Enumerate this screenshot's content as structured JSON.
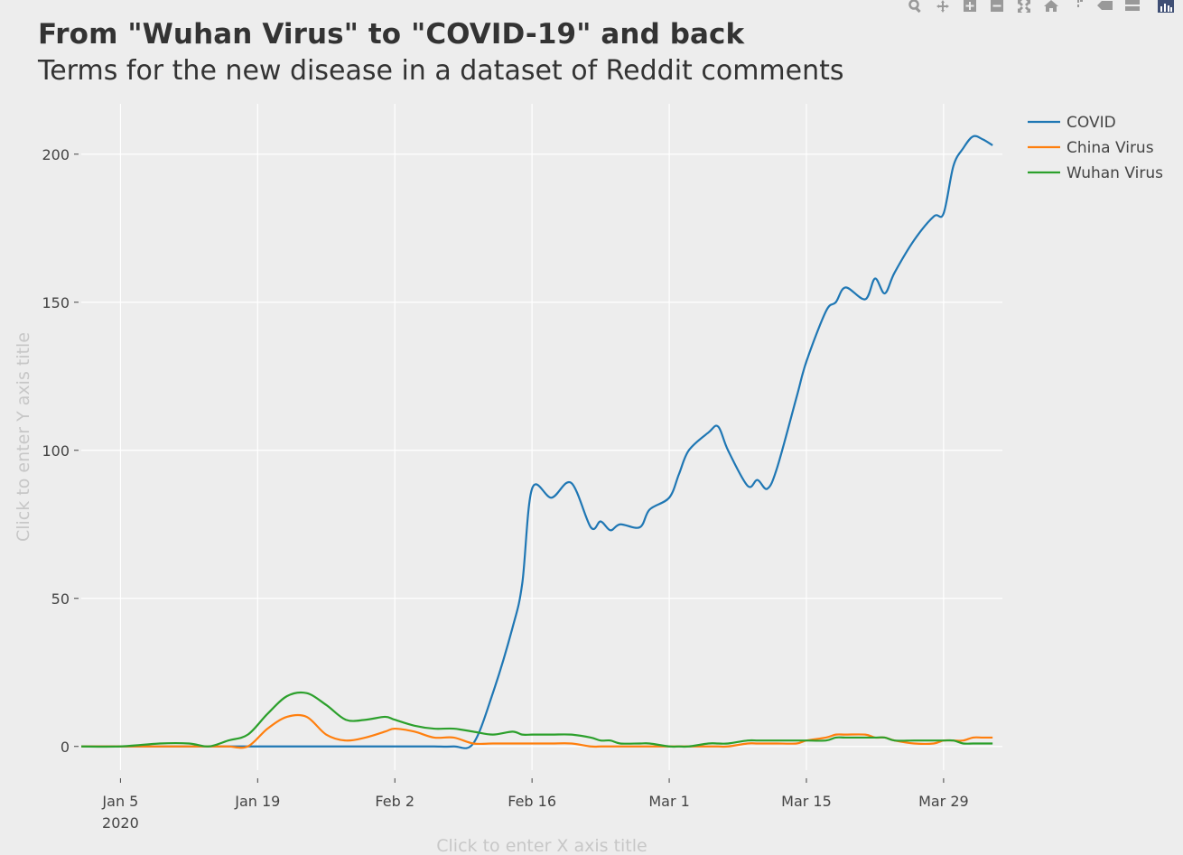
{
  "title": "From \"Wuhan Virus\" to \"COVID-19\" and back",
  "subtitle": "Terms for the new disease in a dataset of Reddit comments",
  "modebar": {
    "icons": [
      "zoom-icon",
      "pan-icon",
      "zoom-in-icon",
      "zoom-out-icon",
      "autoscale-icon",
      "reset-axes-icon",
      "spike-lines-icon",
      "hover-closest-icon",
      "hover-compare-icon",
      "plotly-logo-icon"
    ]
  },
  "colors": {
    "background": "#ededed",
    "grid": "#ffffff",
    "COVID": "#1f77b4",
    "China Virus": "#ff7f0e",
    "Wuhan Virus": "#2ca02c"
  },
  "chart_data": {
    "type": "line",
    "title": "From \"Wuhan Virus\" to \"COVID-19\" and back",
    "subtitle": "Terms for the new disease in a dataset of Reddit comments",
    "xlabel": "Click to enter X axis title",
    "ylabel": "Click to enter Y axis title",
    "x_tick_labels": [
      "Jan 5",
      "Jan 19",
      "Feb 2",
      "Feb 16",
      "Mar 1",
      "Mar 15",
      "Mar 29"
    ],
    "x_tick_dates": [
      "2020-01-05",
      "2020-01-19",
      "2020-02-02",
      "2020-02-16",
      "2020-03-01",
      "2020-03-15",
      "2020-03-29"
    ],
    "x_tick_year_label": "2020",
    "y_ticks": [
      0,
      50,
      100,
      150,
      200
    ],
    "xlim": [
      "2020-01-01",
      "2020-04-04"
    ],
    "ylim": [
      -8,
      217
    ],
    "grid": true,
    "legend_position": "top-right",
    "x": [
      "2020-01-01",
      "2020-01-05",
      "2020-01-09",
      "2020-01-12",
      "2020-01-14",
      "2020-01-16",
      "2020-01-18",
      "2020-01-20",
      "2020-01-22",
      "2020-01-24",
      "2020-01-26",
      "2020-01-28",
      "2020-01-30",
      "2020-02-01",
      "2020-02-02",
      "2020-02-04",
      "2020-02-06",
      "2020-02-08",
      "2020-02-10",
      "2020-02-12",
      "2020-02-14",
      "2020-02-15",
      "2020-02-16",
      "2020-02-18",
      "2020-02-20",
      "2020-02-22",
      "2020-02-23",
      "2020-02-24",
      "2020-02-25",
      "2020-02-27",
      "2020-02-28",
      "2020-03-01",
      "2020-03-02",
      "2020-03-03",
      "2020-03-05",
      "2020-03-06",
      "2020-03-07",
      "2020-03-09",
      "2020-03-10",
      "2020-03-11",
      "2020-03-12",
      "2020-03-14",
      "2020-03-15",
      "2020-03-17",
      "2020-03-18",
      "2020-03-19",
      "2020-03-21",
      "2020-03-22",
      "2020-03-23",
      "2020-03-24",
      "2020-03-26",
      "2020-03-28",
      "2020-03-29",
      "2020-03-30",
      "2020-03-31",
      "2020-04-01",
      "2020-04-02",
      "2020-04-03"
    ],
    "series": [
      {
        "name": "COVID",
        "values": [
          0,
          0,
          0,
          0,
          0,
          0,
          0,
          0,
          0,
          0,
          0,
          0,
          0,
          0,
          0,
          0,
          0,
          0,
          1,
          18,
          40,
          55,
          87,
          84,
          89,
          74,
          76,
          73,
          75,
          74,
          80,
          84,
          92,
          100,
          106,
          108,
          100,
          88,
          90,
          87,
          94,
          118,
          130,
          147,
          150,
          155,
          151,
          158,
          153,
          160,
          171,
          179,
          180,
          196,
          202,
          206,
          205,
          203
        ]
      },
      {
        "name": "China Virus",
        "values": [
          0,
          0,
          0,
          0,
          0,
          0,
          0,
          6,
          10,
          10,
          4,
          2,
          3,
          5,
          6,
          5,
          3,
          3,
          1,
          1,
          1,
          1,
          1,
          1,
          1,
          0,
          0,
          0,
          0,
          0,
          0,
          0,
          0,
          0,
          0,
          0,
          0,
          1,
          1,
          1,
          1,
          1,
          2,
          3,
          4,
          4,
          4,
          3,
          3,
          2,
          1,
          1,
          2,
          2,
          2,
          3,
          3,
          3
        ]
      },
      {
        "name": "Wuhan Virus",
        "values": [
          0,
          0,
          1,
          1,
          0,
          2,
          4,
          11,
          17,
          18,
          14,
          9,
          9,
          10,
          9,
          7,
          6,
          6,
          5,
          4,
          5,
          4,
          4,
          4,
          4,
          3,
          2,
          2,
          1,
          1,
          1,
          0,
          0,
          0,
          1,
          1,
          1,
          2,
          2,
          2,
          2,
          2,
          2,
          2,
          3,
          3,
          3,
          3,
          3,
          2,
          2,
          2,
          2,
          2,
          1,
          1,
          1,
          1
        ]
      }
    ]
  }
}
